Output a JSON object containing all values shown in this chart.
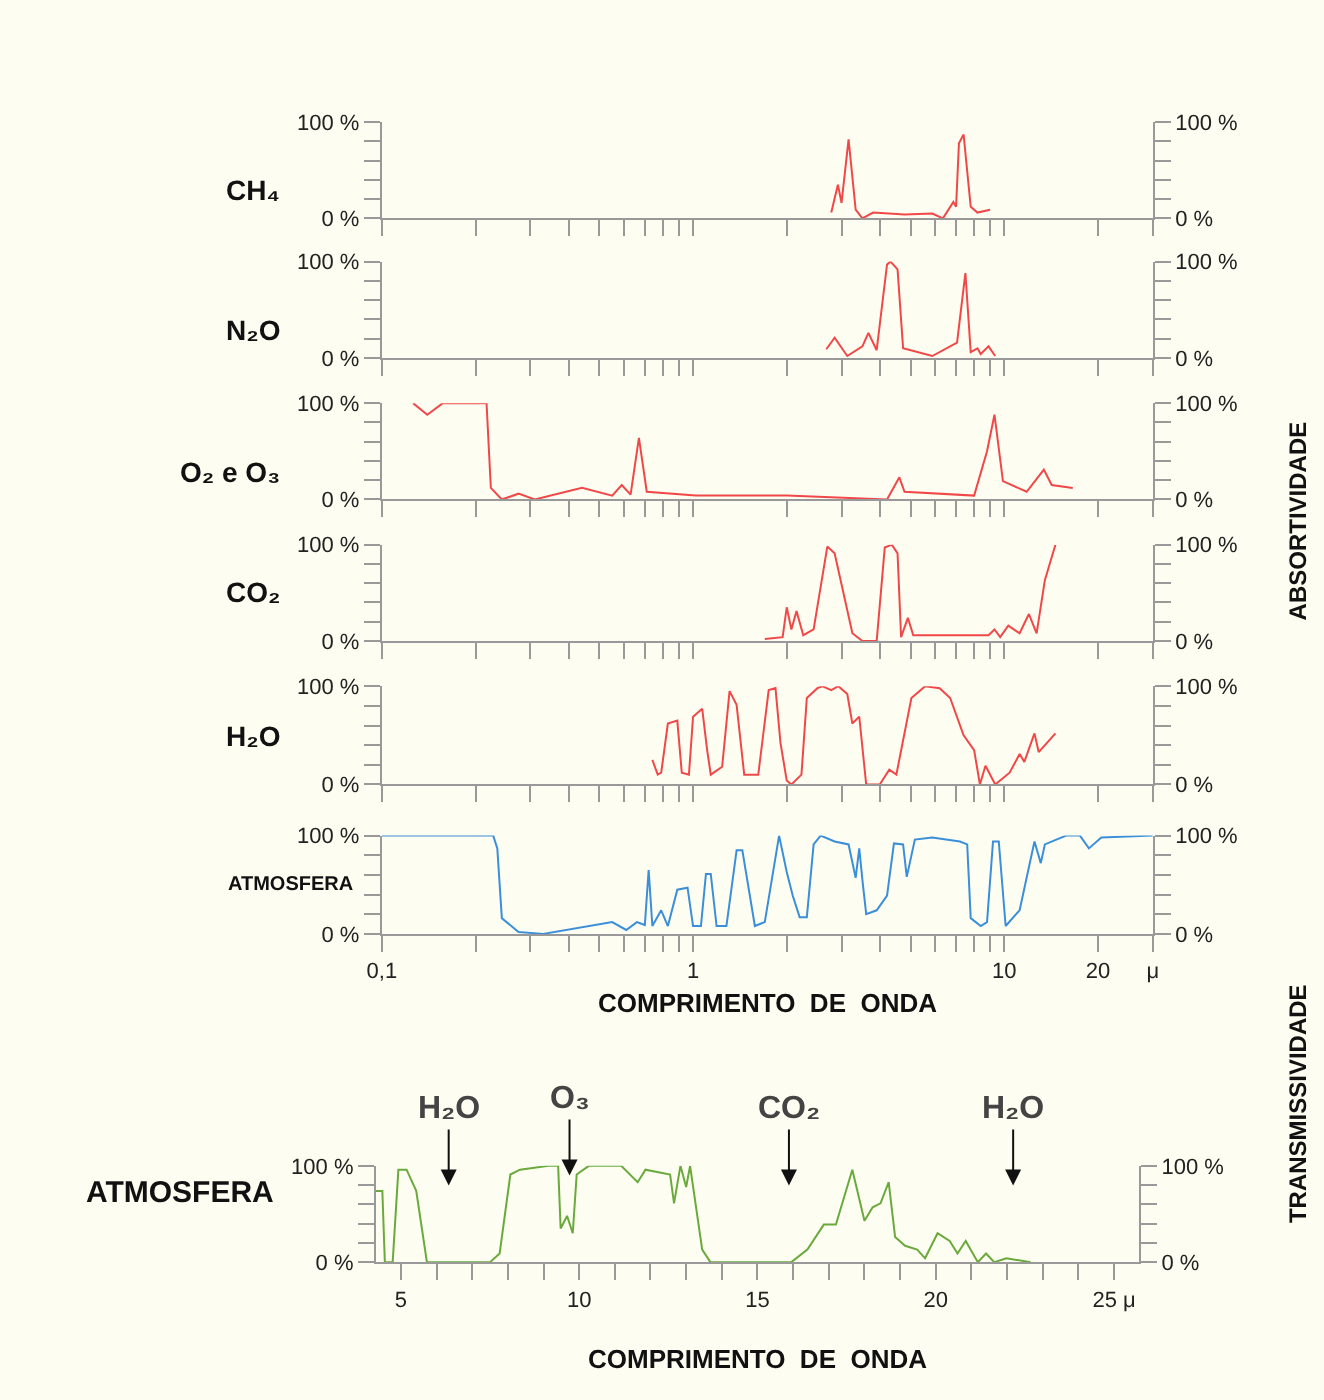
{
  "chart_data": [
    {
      "type": "line",
      "ylabel": "CH₄",
      "log": "x",
      "tick_labels": "y",
      "xlim": [
        0.1,
        30
      ],
      "xticks": [
        {
          "value": 0.1,
          "label": null
        },
        {
          "value": 0.2,
          "label": null
        },
        {
          "value": 0.3,
          "label": null
        },
        {
          "value": 0.4,
          "label": null
        },
        {
          "value": 0.5,
          "label": null
        },
        {
          "value": 0.6,
          "label": null
        },
        {
          "value": 0.7,
          "label": null
        },
        {
          "value": 0.8,
          "label": null
        },
        {
          "value": 0.9,
          "label": null
        },
        {
          "value": 1,
          "label": null
        },
        {
          "value": 2,
          "label": null
        },
        {
          "value": 3,
          "label": null
        },
        {
          "value": 4,
          "label": null
        },
        {
          "value": 5,
          "label": null
        },
        {
          "value": 6,
          "label": null
        },
        {
          "value": 7,
          "label": null
        },
        {
          "value": 8,
          "label": null
        },
        {
          "value": 9,
          "label": null
        },
        {
          "value": 10,
          "label": null
        },
        {
          "value": 20,
          "label": null
        },
        {
          "value": 30,
          "label": null
        }
      ],
      "ylim": [
        0,
        100
      ],
      "yticks": [
        {
          "value": 0,
          "label": "0 %"
        },
        {
          "value": 20,
          "label": null
        },
        {
          "value": 40,
          "label": null
        },
        {
          "value": 60,
          "label": null
        },
        {
          "value": 80,
          "label": null
        },
        {
          "value": 100,
          "label": "100 %"
        }
      ],
      "y2lim": [
        0,
        100
      ],
      "y2ticks": [
        {
          "value": 0,
          "label": "0 %"
        },
        {
          "value": 20,
          "label": null
        },
        {
          "value": 40,
          "label": null
        },
        {
          "value": 60,
          "label": null
        },
        {
          "value": 80,
          "label": null
        },
        {
          "value": 100,
          "label": "100 %"
        }
      ],
      "x": [
        2.78,
        2.92,
        3.0,
        3.16,
        3.33,
        3.5,
        3.79,
        4.78,
        5.87,
        6.35,
        6.86,
        7.0,
        7.15,
        7.4,
        7.8,
        8.2,
        9.0
      ],
      "series": [
        {
          "color": "#f04848",
          "values": [
            6,
            35,
            16,
            82,
            9,
            0,
            6,
            4,
            5,
            0,
            17,
            12,
            78,
            87,
            12,
            6,
            9
          ]
        }
      ]
    },
    {
      "type": "line",
      "ylabel": "N₂O",
      "log": "x",
      "tick_labels": "y",
      "xlim": [
        0.1,
        30
      ],
      "xticks": [
        {
          "value": 0.1,
          "label": null
        },
        {
          "value": 0.2,
          "label": null
        },
        {
          "value": 0.3,
          "label": null
        },
        {
          "value": 0.4,
          "label": null
        },
        {
          "value": 0.5,
          "label": null
        },
        {
          "value": 0.6,
          "label": null
        },
        {
          "value": 0.7,
          "label": null
        },
        {
          "value": 0.8,
          "label": null
        },
        {
          "value": 0.9,
          "label": null
        },
        {
          "value": 1,
          "label": null
        },
        {
          "value": 2,
          "label": null
        },
        {
          "value": 3,
          "label": null
        },
        {
          "value": 4,
          "label": null
        },
        {
          "value": 5,
          "label": null
        },
        {
          "value": 6,
          "label": null
        },
        {
          "value": 7,
          "label": null
        },
        {
          "value": 8,
          "label": null
        },
        {
          "value": 9,
          "label": null
        },
        {
          "value": 10,
          "label": null
        },
        {
          "value": 20,
          "label": null
        },
        {
          "value": 30,
          "label": null
        }
      ],
      "ylim": [
        0,
        100
      ],
      "yticks": [
        {
          "value": 0,
          "label": "0 %"
        },
        {
          "value": 20,
          "label": null
        },
        {
          "value": 40,
          "label": null
        },
        {
          "value": 60,
          "label": null
        },
        {
          "value": 80,
          "label": null
        },
        {
          "value": 100,
          "label": "100 %"
        }
      ],
      "y2lim": [
        0,
        100
      ],
      "y2ticks": [
        {
          "value": 0,
          "label": "0 %"
        },
        {
          "value": 20,
          "label": null
        },
        {
          "value": 40,
          "label": null
        },
        {
          "value": 60,
          "label": null
        },
        {
          "value": 80,
          "label": null
        },
        {
          "value": 100,
          "label": "100 %"
        }
      ],
      "x": [
        2.68,
        2.85,
        3.13,
        3.5,
        3.66,
        3.89,
        4.2,
        4.31,
        4.54,
        4.73,
        5.87,
        7.05,
        7.5,
        7.8,
        8.2,
        8.4,
        8.9,
        9.35
      ],
      "series": [
        {
          "color": "#f04848",
          "values": [
            9,
            21,
            2,
            12,
            26,
            8,
            97,
            100,
            92,
            10,
            2,
            16,
            88,
            6,
            10,
            4,
            12,
            2
          ]
        }
      ]
    },
    {
      "type": "line",
      "ylabel": "O₂ e O₃",
      "log": "x",
      "tick_labels": "y",
      "xlim": [
        0.1,
        30
      ],
      "xticks": [
        {
          "value": 0.1,
          "label": null
        },
        {
          "value": 0.2,
          "label": null
        },
        {
          "value": 0.3,
          "label": null
        },
        {
          "value": 0.4,
          "label": null
        },
        {
          "value": 0.5,
          "label": null
        },
        {
          "value": 0.6,
          "label": null
        },
        {
          "value": 0.7,
          "label": null
        },
        {
          "value": 0.8,
          "label": null
        },
        {
          "value": 0.9,
          "label": null
        },
        {
          "value": 1,
          "label": null
        },
        {
          "value": 2,
          "label": null
        },
        {
          "value": 3,
          "label": null
        },
        {
          "value": 4,
          "label": null
        },
        {
          "value": 5,
          "label": null
        },
        {
          "value": 6,
          "label": null
        },
        {
          "value": 7,
          "label": null
        },
        {
          "value": 8,
          "label": null
        },
        {
          "value": 9,
          "label": null
        },
        {
          "value": 10,
          "label": null
        },
        {
          "value": 20,
          "label": null
        },
        {
          "value": 30,
          "label": null
        }
      ],
      "ylim": [
        0,
        100
      ],
      "yticks": [
        {
          "value": 0,
          "label": "0 %"
        },
        {
          "value": 20,
          "label": null
        },
        {
          "value": 40,
          "label": null
        },
        {
          "value": 60,
          "label": null
        },
        {
          "value": 80,
          "label": null
        },
        {
          "value": 100,
          "label": "100 %"
        }
      ],
      "y2lim": [
        0,
        100
      ],
      "y2ticks": [
        {
          "value": 0,
          "label": "0 %"
        },
        {
          "value": 20,
          "label": null
        },
        {
          "value": 40,
          "label": null
        },
        {
          "value": 60,
          "label": null
        },
        {
          "value": 80,
          "label": null
        },
        {
          "value": 100,
          "label": "100 %"
        }
      ],
      "x": [
        0.126,
        0.14,
        0.157,
        0.217,
        0.224,
        0.243,
        0.275,
        0.31,
        0.44,
        0.55,
        0.59,
        0.63,
        0.67,
        0.71,
        1.02,
        2.0,
        4.2,
        4.6,
        4.78,
        8.0,
        8.8,
        9.3,
        9.9,
        11.8,
        13.4,
        14.2,
        16.6
      ],
      "series": [
        {
          "color": "#f04848",
          "values": [
            100,
            88,
            100,
            100,
            12,
            0,
            6,
            0,
            12,
            4,
            15,
            5,
            64,
            8,
            4,
            4,
            0,
            23,
            8,
            4,
            50,
            88,
            19,
            8,
            31,
            15,
            12
          ]
        }
      ]
    },
    {
      "type": "line",
      "ylabel": "CO₂",
      "y2label": "ABSORTIVIDADE",
      "log": "x",
      "tick_labels": "y",
      "xlim": [
        0.1,
        30
      ],
      "xticks": [
        {
          "value": 0.1,
          "label": null
        },
        {
          "value": 0.2,
          "label": null
        },
        {
          "value": 0.3,
          "label": null
        },
        {
          "value": 0.4,
          "label": null
        },
        {
          "value": 0.5,
          "label": null
        },
        {
          "value": 0.6,
          "label": null
        },
        {
          "value": 0.7,
          "label": null
        },
        {
          "value": 0.8,
          "label": null
        },
        {
          "value": 0.9,
          "label": null
        },
        {
          "value": 1,
          "label": null
        },
        {
          "value": 2,
          "label": null
        },
        {
          "value": 3,
          "label": null
        },
        {
          "value": 4,
          "label": null
        },
        {
          "value": 5,
          "label": null
        },
        {
          "value": 6,
          "label": null
        },
        {
          "value": 7,
          "label": null
        },
        {
          "value": 8,
          "label": null
        },
        {
          "value": 9,
          "label": null
        },
        {
          "value": 10,
          "label": null
        },
        {
          "value": 20,
          "label": null
        },
        {
          "value": 30,
          "label": null
        }
      ],
      "ylim": [
        0,
        100
      ],
      "yticks": [
        {
          "value": 0,
          "label": "0 %"
        },
        {
          "value": 20,
          "label": null
        },
        {
          "value": 40,
          "label": null
        },
        {
          "value": 60,
          "label": null
        },
        {
          "value": 80,
          "label": null
        },
        {
          "value": 100,
          "label": "100 %"
        }
      ],
      "y2lim": [
        0,
        100
      ],
      "y2ticks": [
        {
          "value": 0,
          "label": "0 %"
        },
        {
          "value": 20,
          "label": null
        },
        {
          "value": 40,
          "label": null
        },
        {
          "value": 60,
          "label": null
        },
        {
          "value": 80,
          "label": null
        },
        {
          "value": 100,
          "label": "100 %"
        }
      ],
      "x": [
        1.7,
        1.94,
        2.0,
        2.07,
        2.15,
        2.26,
        2.44,
        2.7,
        2.85,
        3.25,
        3.5,
        3.89,
        4.13,
        4.35,
        4.54,
        4.66,
        4.9,
        5.1,
        8.9,
        9.3,
        9.7,
        10.3,
        11.2,
        12.0,
        12.7,
        13.5,
        14.6
      ],
      "series": [
        {
          "color": "#f04848",
          "values": [
            2,
            4,
            35,
            12,
            31,
            6,
            12,
            98,
            91,
            8,
            0,
            0,
            97,
            100,
            91,
            4,
            24,
            6,
            6,
            12,
            4,
            16,
            8,
            28,
            8,
            63,
            100
          ]
        }
      ]
    },
    {
      "type": "line",
      "ylabel": "H₂O",
      "log": "x",
      "tick_labels": "y",
      "xlim": [
        0.1,
        30
      ],
      "xticks": [
        {
          "value": 0.1,
          "label": null
        },
        {
          "value": 0.2,
          "label": null
        },
        {
          "value": 0.3,
          "label": null
        },
        {
          "value": 0.4,
          "label": null
        },
        {
          "value": 0.5,
          "label": null
        },
        {
          "value": 0.6,
          "label": null
        },
        {
          "value": 0.7,
          "label": null
        },
        {
          "value": 0.8,
          "label": null
        },
        {
          "value": 0.9,
          "label": null
        },
        {
          "value": 1,
          "label": null
        },
        {
          "value": 2,
          "label": null
        },
        {
          "value": 3,
          "label": null
        },
        {
          "value": 4,
          "label": null
        },
        {
          "value": 5,
          "label": null
        },
        {
          "value": 6,
          "label": null
        },
        {
          "value": 7,
          "label": null
        },
        {
          "value": 8,
          "label": null
        },
        {
          "value": 9,
          "label": null
        },
        {
          "value": 10,
          "label": null
        },
        {
          "value": 20,
          "label": null
        },
        {
          "value": 30,
          "label": null
        }
      ],
      "ylim": [
        0,
        100
      ],
      "yticks": [
        {
          "value": 0,
          "label": "0 %"
        },
        {
          "value": 20,
          "label": null
        },
        {
          "value": 40,
          "label": null
        },
        {
          "value": 60,
          "label": null
        },
        {
          "value": 80,
          "label": null
        },
        {
          "value": 100,
          "label": "100 %"
        }
      ],
      "y2lim": [
        0,
        100
      ],
      "y2ticks": [
        {
          "value": 0,
          "label": "0 %"
        },
        {
          "value": 20,
          "label": null
        },
        {
          "value": 40,
          "label": null
        },
        {
          "value": 60,
          "label": null
        },
        {
          "value": 80,
          "label": null
        },
        {
          "value": 100,
          "label": "100 %"
        }
      ],
      "x": [
        0.74,
        0.77,
        0.79,
        0.83,
        0.89,
        0.92,
        0.97,
        1.0,
        1.07,
        1.11,
        1.14,
        1.24,
        1.31,
        1.38,
        1.46,
        1.62,
        1.75,
        1.84,
        1.91,
        2.0,
        2.07,
        2.23,
        2.32,
        2.51,
        2.6,
        2.78,
        2.93,
        3.13,
        3.25,
        3.42,
        3.6,
        3.98,
        4.27,
        4.5,
        5.03,
        5.57,
        6.2,
        6.7,
        7.4,
        8.0,
        8.35,
        8.7,
        9.35,
        10.4,
        11.2,
        11.6,
        12.5,
        12.9,
        14.6
      ],
      "series": [
        {
          "color": "#f04848",
          "values": [
            25,
            10,
            12,
            62,
            65,
            12,
            10,
            69,
            77,
            35,
            10,
            18,
            95,
            81,
            10,
            10,
            96,
            98,
            42,
            4,
            0,
            10,
            88,
            98,
            100,
            96,
            100,
            92,
            62,
            69,
            0,
            0,
            15,
            10,
            88,
            100,
            98,
            88,
            50,
            35,
            0,
            19,
            0,
            12,
            31,
            23,
            52,
            33,
            52
          ]
        }
      ]
    },
    {
      "type": "line",
      "ylabel": "ATMOSFERA",
      "xlabel": "COMPRIMENTO  DE  ONDA",
      "log": "x",
      "xlim": [
        0.1,
        30
      ],
      "xticks": [
        {
          "value": 0.1,
          "label": "0,1"
        },
        {
          "value": 0.2,
          "label": null
        },
        {
          "value": 0.3,
          "label": null
        },
        {
          "value": 0.4,
          "label": null
        },
        {
          "value": 0.5,
          "label": null
        },
        {
          "value": 0.6,
          "label": null
        },
        {
          "value": 0.7,
          "label": null
        },
        {
          "value": 0.8,
          "label": null
        },
        {
          "value": 0.9,
          "label": null
        },
        1,
        {
          "value": 2,
          "label": null
        },
        {
          "value": 3,
          "label": null
        },
        {
          "value": 4,
          "label": null
        },
        {
          "value": 5,
          "label": null
        },
        {
          "value": 6,
          "label": null
        },
        {
          "value": 7,
          "label": null
        },
        {
          "value": 8,
          "label": null
        },
        {
          "value": 9,
          "label": null
        },
        10,
        20,
        {
          "value": 30,
          "label": "μ"
        }
      ],
      "ylim": [
        0,
        100
      ],
      "yticks": [
        {
          "value": 0,
          "label": "0 %"
        },
        {
          "value": 20,
          "label": null
        },
        {
          "value": 40,
          "label": null
        },
        {
          "value": 60,
          "label": null
        },
        {
          "value": 80,
          "label": null
        },
        {
          "value": 100,
          "label": "100 %"
        }
      ],
      "y2lim": [
        0,
        100
      ],
      "y2ticks": [
        {
          "value": 0,
          "label": "0 %"
        },
        {
          "value": 20,
          "label": null
        },
        {
          "value": 40,
          "label": null
        },
        {
          "value": 60,
          "label": null
        },
        {
          "value": 80,
          "label": null
        },
        {
          "value": 100,
          "label": "100 %"
        }
      ],
      "x": [
        0.1,
        0.228,
        0.235,
        0.243,
        0.275,
        0.33,
        0.55,
        0.61,
        0.66,
        0.7,
        0.72,
        0.74,
        0.79,
        0.83,
        0.89,
        0.96,
        1.0,
        1.06,
        1.1,
        1.14,
        1.19,
        1.28,
        1.38,
        1.44,
        1.58,
        1.7,
        1.89,
        2.0,
        2.09,
        2.2,
        2.32,
        2.44,
        2.57,
        2.85,
        3.16,
        3.33,
        3.42,
        3.5,
        3.6,
        3.89,
        4.2,
        4.42,
        4.73,
        4.86,
        5.16,
        5.87,
        7.2,
        7.6,
        7.8,
        8.4,
        8.8,
        9.2,
        9.6,
        10.1,
        11.2,
        12.5,
        13.1,
        13.5,
        15.8,
        17.5,
        18.7,
        20.5,
        30
      ],
      "series": [
        {
          "color": "#3a8fd8",
          "values": [
            100,
            100,
            87,
            16,
            2,
            0,
            12,
            4,
            12,
            9,
            65,
            8,
            24,
            8,
            45,
            47,
            8,
            8,
            61,
            61,
            8,
            8,
            85,
            85,
            8,
            12,
            100,
            63,
            39,
            17,
            17,
            91,
            100,
            94,
            91,
            57,
            87,
            55,
            20,
            24,
            39,
            92,
            91,
            58,
            96,
            98,
            94,
            91,
            16,
            8,
            12,
            94,
            94,
            8,
            24,
            94,
            72,
            91,
            100,
            100,
            87,
            98,
            100
          ]
        }
      ]
    },
    {
      "type": "line",
      "ylabel": "ATMOSFERA",
      "xlabel": "COMPRIMENTO  DE  ONDA",
      "y2label": "TRANSMISSIVIDADE",
      "xlim": [
        4.3,
        25.7
      ],
      "xticks": [
        5,
        {
          "value": 6,
          "label": null
        },
        {
          "value": 7,
          "label": null
        },
        {
          "value": 8,
          "label": null
        },
        {
          "value": 9,
          "label": null
        },
        10,
        {
          "value": 11,
          "label": null
        },
        {
          "value": 12,
          "label": null
        },
        {
          "value": 13,
          "label": null
        },
        {
          "value": 14,
          "label": null
        },
        15,
        {
          "value": 16,
          "label": null
        },
        {
          "value": 17,
          "label": null
        },
        {
          "value": 18,
          "label": null
        },
        {
          "value": 19,
          "label": null
        },
        20,
        {
          "value": 21,
          "label": null
        },
        {
          "value": 22,
          "label": null
        },
        {
          "value": 23,
          "label": null
        },
        {
          "value": 24,
          "label": null
        },
        {
          "value": 25,
          "label": "25 μ"
        }
      ],
      "ylim": [
        0,
        100
      ],
      "yticks": [
        {
          "value": 0,
          "label": "0 %"
        },
        {
          "value": 20,
          "label": null
        },
        {
          "value": 40,
          "label": null
        },
        {
          "value": 60,
          "label": null
        },
        {
          "value": 80,
          "label": null
        },
        {
          "value": 100,
          "label": "100 %"
        }
      ],
      "y2lim": [
        0,
        100
      ],
      "y2ticks": [
        {
          "value": 0,
          "label": "0 %"
        },
        {
          "value": 20,
          "label": null
        },
        {
          "value": 40,
          "label": null
        },
        {
          "value": 60,
          "label": null
        },
        {
          "value": 80,
          "label": null
        },
        {
          "value": 100,
          "label": "100 %"
        }
      ],
      "annotations": [
        "H₂O",
        {
          "text": "O₃",
          "x": 9.73,
          "y": 90
        },
        "CO₂",
        "H₂O"
      ],
      "x": [
        4.3,
        4.48,
        4.55,
        4.77,
        4.93,
        5.16,
        5.43,
        5.73,
        7.5,
        7.77,
        8.07,
        8.34,
        9.14,
        9.41,
        9.48,
        9.66,
        9.82,
        9.93,
        10.27,
        11.18,
        11.64,
        11.86,
        12.55,
        12.66,
        12.84,
        13.0,
        13.11,
        13.45,
        13.68,
        15.95,
        16.4,
        16.86,
        17.2,
        17.66,
        18.0,
        18.23,
        18.45,
        18.68,
        18.86,
        19.14,
        19.48,
        19.7,
        20.05,
        20.39,
        20.61,
        20.84,
        21.18,
        21.41,
        21.64,
        21.98,
        22.66
      ],
      "series": [
        {
          "color": "#6aaa3c",
          "values": [
            74,
            74,
            0,
            0,
            96,
            96,
            74,
            0,
            0,
            9,
            91,
            96,
            100,
            100,
            35,
            48,
            30,
            91,
            100,
            100,
            83,
            96,
            91,
            61,
            100,
            78,
            100,
            13,
            0,
            0,
            13,
            39,
            39,
            96,
            43,
            57,
            61,
            83,
            26,
            17,
            13,
            4,
            30,
            22,
            9,
            22,
            0,
            9,
            0,
            4,
            0
          ]
        }
      ]
    }
  ]
}
